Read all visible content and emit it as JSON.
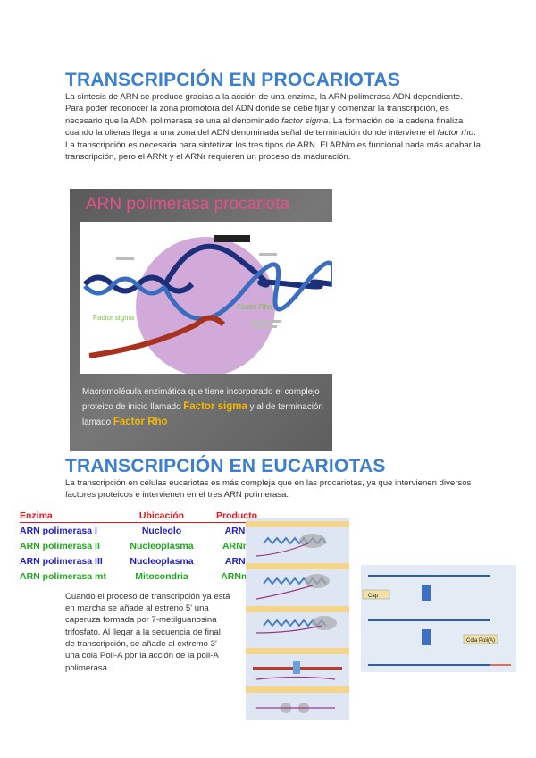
{
  "section1": {
    "title": "TRANSCRIPCIÓN EN PROCARIOTAS",
    "p1": "La síntesis de ARN se produce gracias a la acción de una enzima, la ARN polimerasa ADN dependiente.",
    "p2a": "Para poder reconocer la zona promotora del ADN donde se debe fijar y comenzar la transcripción, es necesario que la ADN polimerasa se una al denominado ",
    "p2b": "factor sigma",
    "p2c": ". La formación de la cadena finaliza cuando la olieras llega a una zona del ADN denominada señal de terminación donde interviene el ",
    "p2d": "factor rho",
    "p2e": ".",
    "p3": "La transcripción es necesaria para sintetizar los tres tipos de ARN. El ARNm es funcional nada más acabar la transcripción, pero el ARNt y el ARNr requieren un proceso de maduración.",
    "figure": {
      "title": "ARN polimerasa procariota",
      "label_sigma": "Factor sigma",
      "label_rho": "Factor Rho",
      "caption_a": "Macromolécula enzimática que tiene incorporado el complejo proteico  de inicio llamado ",
      "caption_b": "Factor sigma",
      "caption_c": " y al de terminación  lamado ",
      "caption_d": "Factor Rho"
    }
  },
  "section2": {
    "title": "TRANSCRIPCIÓN EN EUCARIOTAS",
    "p1": "La transcripción en células eucariotas es más compleja que en las procariotas, ya que intervienen diversos factores proteicos e intervienen en el tres ARN polimerasa.",
    "table": {
      "headers": [
        "Enzima",
        "Ubicación",
        "Producto"
      ],
      "rows": [
        [
          "ARN polimerasa I",
          "Nucleolo",
          "ARNr"
        ],
        [
          "ARN polimerasa II",
          "Nucleoplasma",
          "ARNm"
        ],
        [
          "ARN polimerasa III",
          "Nucleoplasma",
          "ARNt"
        ],
        [
          "ARN polimerasa mt",
          "Mitocondria",
          "ARNmt"
        ]
      ],
      "row_colors": [
        "#1d1dd6",
        "#1fa81f",
        "#1d1dd6",
        "#1fa81f"
      ]
    },
    "p2": "Cuando el proceso de transcripción ya está en marcha se añade al estreno 5' una caperuza formada por 7-metilguanosina trifosfato. Al llegar a la secuencia de final de transcripción, se añade al extremo 3' una cola Poli-A por la acción de la poli-A polimerasa.",
    "figure2": {
      "cap_label": "Cap",
      "polya_label": "Cola Poli(A)"
    }
  },
  "colors": {
    "heading": "#3a7fd0",
    "table_header": "#e8151b",
    "highlight": "#f5b800",
    "figure_title": "#e8508a"
  }
}
